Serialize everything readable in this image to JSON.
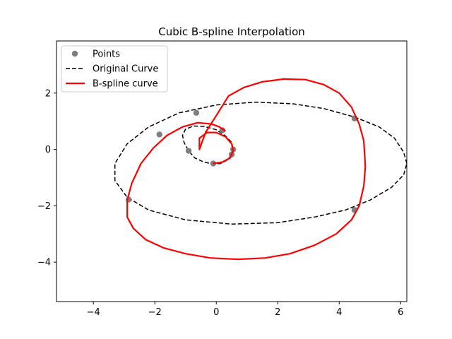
{
  "chart_data": {
    "type": "line",
    "title": "Cubic B-spline Interpolation",
    "xlabel": "",
    "ylabel": "",
    "xlim": [
      -5.2,
      6.2
    ],
    "ylim": [
      -5.4,
      3.85
    ],
    "xticks": [
      -4,
      -2,
      0,
      2,
      4,
      6
    ],
    "yticks": [
      -4,
      -2,
      0,
      2
    ],
    "xtick_labels": [
      "−4",
      "−2",
      "0",
      "2",
      "4",
      "6"
    ],
    "ytick_labels": [
      "−4",
      "−2",
      "0",
      "2"
    ],
    "grid": false,
    "legend_position": "upper-left",
    "legend": [
      "Points",
      "Original Curve",
      "B-spline curve"
    ],
    "colors": {
      "points": "#7f7f7f",
      "original": "#000000",
      "spline": "#ff0000"
    },
    "points": {
      "name": "Points",
      "x": [
        4.5,
        4.5,
        -2.85,
        -1.85,
        -0.65,
        0.2,
        0.55,
        0.5,
        -0.1,
        -0.9
      ],
      "y": [
        1.1,
        -2.15,
        -1.78,
        0.53,
        1.3,
        0.68,
        0.0,
        -0.18,
        -0.5,
        -0.05
      ]
    },
    "original_curve": {
      "name": "Original Curve",
      "x": [
        6.2,
        6.1,
        5.8,
        5.3,
        4.5,
        3.5,
        2.5,
        1.3,
        0.0,
        -1.2,
        -2.2,
        -2.9,
        -3.3,
        -3.3,
        -2.9,
        -2.2,
        -1.0,
        0.5,
        2.0,
        3.2,
        4.2,
        5.0,
        5.7,
        6.1,
        6.2,
        null,
        0.55,
        0.5,
        0.35,
        0.15,
        -0.1,
        -0.4,
        -0.7,
        -0.9,
        -1.05,
        -1.1,
        -1.0,
        -0.75,
        -0.4,
        0.0,
        0.3,
        0.5,
        0.55
      ],
      "y": [
        -0.5,
        -0.1,
        0.4,
        0.8,
        1.15,
        1.45,
        1.62,
        1.68,
        1.58,
        1.3,
        0.8,
        0.2,
        -0.5,
        -1.1,
        -1.7,
        -2.15,
        -2.5,
        -2.65,
        -2.6,
        -2.4,
        -2.15,
        -1.8,
        -1.35,
        -0.9,
        -0.5,
        null,
        0.0,
        -0.2,
        -0.38,
        -0.5,
        -0.52,
        -0.45,
        -0.3,
        -0.05,
        0.25,
        0.5,
        0.72,
        0.83,
        0.82,
        0.7,
        0.48,
        0.25,
        0.0
      ]
    },
    "spline_curve": {
      "name": "B-spline curve",
      "x": [
        -0.1,
        0.2,
        0.45,
        0.55,
        0.5,
        0.3,
        0.0,
        -0.3,
        -0.55,
        -0.55,
        -0.35,
        0.0,
        0.4,
        0.9,
        1.5,
        2.2,
        2.9,
        3.5,
        4.0,
        4.4,
        4.65,
        4.8,
        4.85,
        4.8,
        4.65,
        4.4,
        3.9,
        3.2,
        2.4,
        1.6,
        0.7,
        -0.2,
        -1.0,
        -1.7,
        -2.3,
        -2.7,
        -2.9,
        -2.9,
        -2.75,
        -2.45,
        -2.05,
        -1.6,
        -1.1,
        -0.6,
        -0.15,
        0.1,
        0.3
      ],
      "y": [
        -0.5,
        -0.45,
        -0.3,
        -0.05,
        0.2,
        0.45,
        0.6,
        0.6,
        0.4,
        0.0,
        0.6,
        1.2,
        1.9,
        2.2,
        2.4,
        2.5,
        2.48,
        2.3,
        2.0,
        1.5,
        0.9,
        0.3,
        -0.6,
        -1.3,
        -2.0,
        -2.5,
        -3.0,
        -3.4,
        -3.7,
        -3.85,
        -3.9,
        -3.85,
        -3.7,
        -3.5,
        -3.2,
        -2.8,
        -2.4,
        -1.8,
        -1.2,
        -0.5,
        0.05,
        0.5,
        0.8,
        0.95,
        0.9,
        0.8,
        0.65
      ]
    }
  }
}
